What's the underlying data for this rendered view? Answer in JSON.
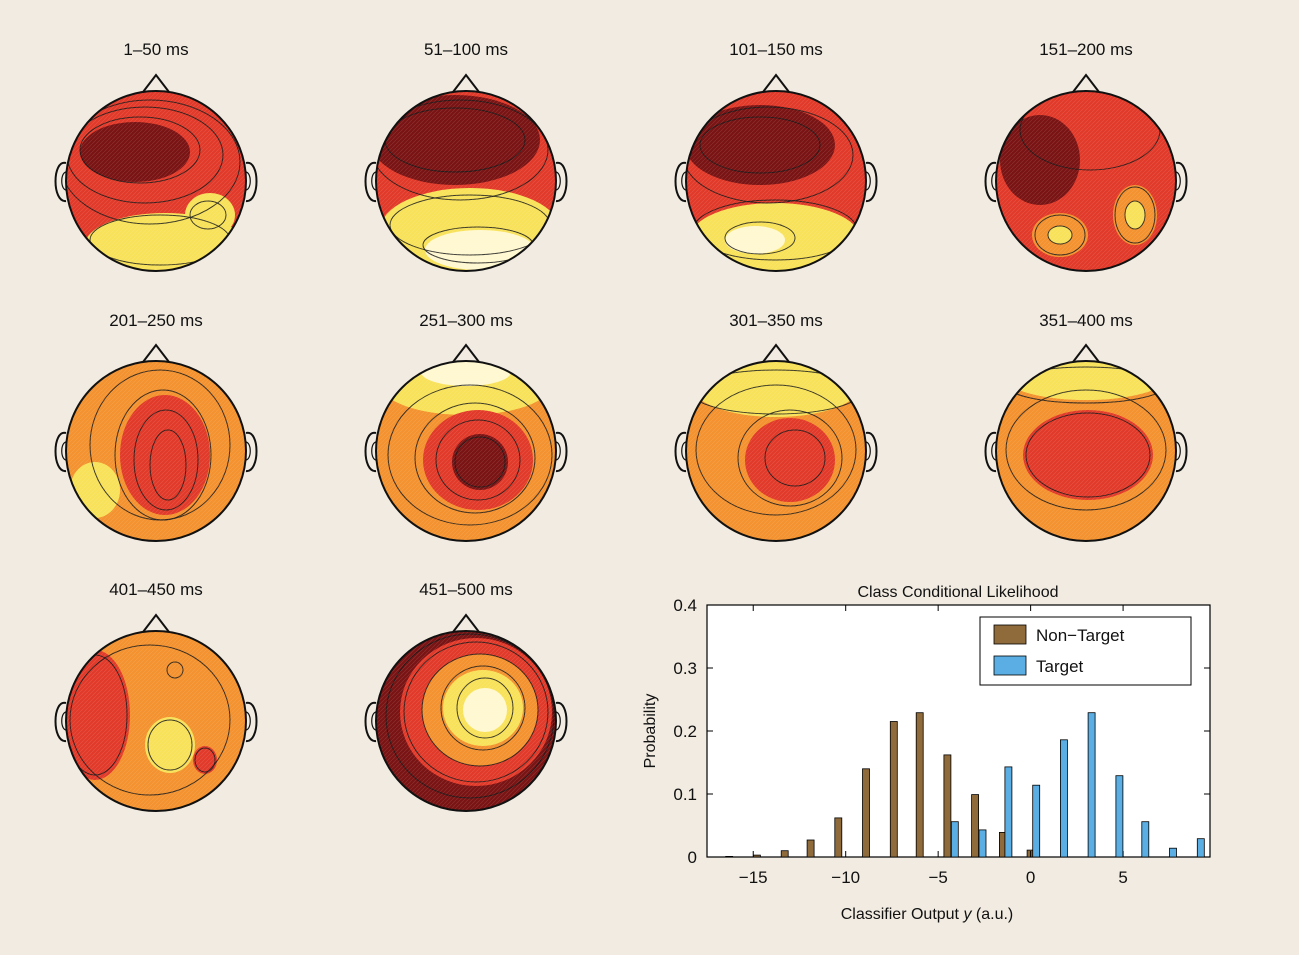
{
  "colors": {
    "background": "#f1ebe1",
    "non_target": "#8f6a3b",
    "target": "#5aaee3",
    "map_hot_dark": "#7a1414",
    "map_red": "#e23a2a",
    "map_orange": "#f3922f",
    "map_yellow": "#f8e25a",
    "map_pale": "#fff8d0"
  },
  "topomaps": {
    "labels": [
      "1–50 ms",
      "51–100 ms",
      "101–150 ms",
      "151–200 ms",
      "201–250 ms",
      "251–300 ms",
      "301–350 ms",
      "351–400 ms",
      "401–450 ms",
      "451–500 ms"
    ]
  },
  "chart_data": {
    "type": "bar",
    "title": "Class Conditional Likelihood",
    "xlabel_prefix": "Classifier Output ",
    "xlabel_var": "y",
    "xlabel_suffix": " (a.u.)",
    "ylabel": "Probability",
    "xlim": [
      -17.5,
      9.7
    ],
    "ylim": [
      0,
      0.4
    ],
    "xticks": [
      -15,
      -10,
      -5,
      0,
      5
    ],
    "xtick_labels": [
      "−15",
      "−10",
      "−5",
      "0",
      "5"
    ],
    "yticks": [
      0,
      0.1,
      0.2,
      0.3,
      0.4
    ],
    "ytick_labels": [
      "0",
      "0.1",
      "0.2",
      "0.3",
      "0.4"
    ],
    "legend_position": "top-right",
    "series": [
      {
        "name": "Non−Target",
        "color": "#8f6a3b",
        "x": [
          -16.3,
          -14.8,
          -13.3,
          -11.9,
          -10.4,
          -8.9,
          -7.4,
          -6.0,
          -4.5,
          -3.0,
          -1.5,
          0.0
        ],
        "values": [
          0.001,
          0.003,
          0.01,
          0.027,
          0.062,
          0.14,
          0.215,
          0.229,
          0.162,
          0.099,
          0.039,
          0.011
        ]
      },
      {
        "name": "Target",
        "color": "#5aaee3",
        "x": [
          -4.1,
          -2.6,
          -1.2,
          0.3,
          1.8,
          3.3,
          4.8,
          6.2,
          7.7,
          9.2
        ],
        "values": [
          0.056,
          0.043,
          0.143,
          0.114,
          0.186,
          0.229,
          0.129,
          0.056,
          0.014,
          0.029
        ]
      }
    ]
  }
}
